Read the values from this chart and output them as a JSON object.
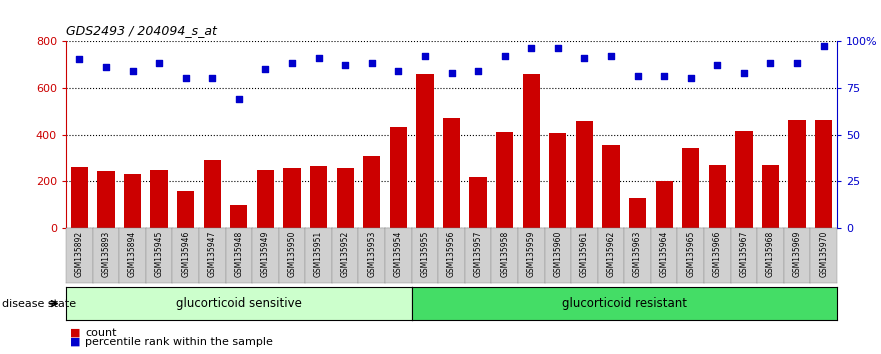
{
  "title": "GDS2493 / 204094_s_at",
  "samples": [
    "GSM135892",
    "GSM135893",
    "GSM135894",
    "GSM135945",
    "GSM135946",
    "GSM135947",
    "GSM135948",
    "GSM135949",
    "GSM135950",
    "GSM135951",
    "GSM135952",
    "GSM135953",
    "GSM135954",
    "GSM135955",
    "GSM135956",
    "GSM135957",
    "GSM135958",
    "GSM135959",
    "GSM135960",
    "GSM135961",
    "GSM135962",
    "GSM135963",
    "GSM135964",
    "GSM135965",
    "GSM135966",
    "GSM135967",
    "GSM135968",
    "GSM135969",
    "GSM135970"
  ],
  "counts": [
    262,
    245,
    232,
    248,
    160,
    292,
    98,
    248,
    258,
    264,
    258,
    310,
    430,
    658,
    472,
    220,
    412,
    658,
    408,
    456,
    354,
    128,
    200,
    342,
    268,
    415,
    272,
    460,
    460
  ],
  "percentiles": [
    90,
    86,
    84,
    88,
    80,
    80,
    69,
    85,
    88,
    91,
    87,
    88,
    84,
    92,
    83,
    84,
    92,
    96,
    96,
    91,
    92,
    81,
    81,
    80,
    87,
    83,
    88,
    88,
    97
  ],
  "group1_count": 13,
  "group1_label": "glucorticoid sensitive",
  "group2_label": "glucorticoid resistant",
  "group1_color": "#ccffcc",
  "group2_color": "#44dd66",
  "bar_color": "#CC0000",
  "dot_color": "#0000CC",
  "ylim_left": [
    0,
    800
  ],
  "ylim_right": [
    0,
    100
  ],
  "yticks_left": [
    0,
    200,
    400,
    600,
    800
  ],
  "yticks_right": [
    0,
    25,
    50,
    75,
    100
  ],
  "ytick_labels_right": [
    "0",
    "25",
    "50",
    "75",
    "100%"
  ],
  "disease_state_label": "disease state",
  "legend_count_label": "count",
  "legend_pct_label": "percentile rank within the sample",
  "xticklabel_bg": "#d0d0d0"
}
